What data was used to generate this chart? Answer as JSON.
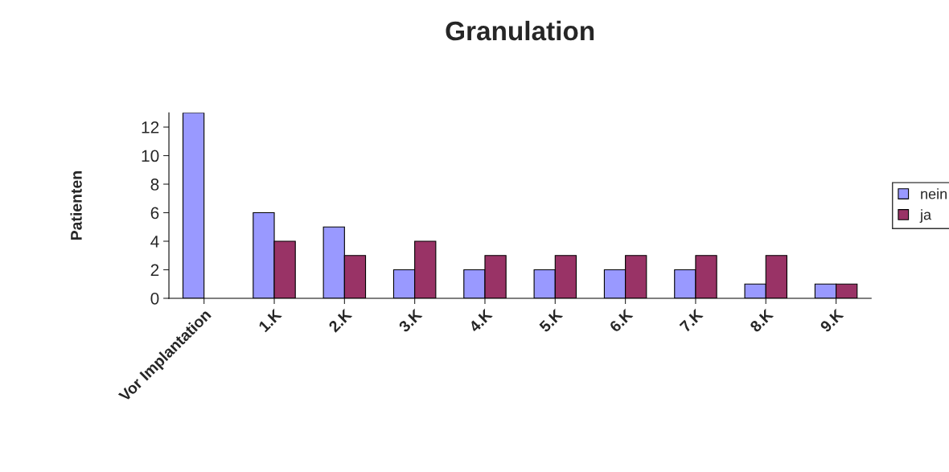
{
  "chart_data": {
    "type": "bar",
    "title": "Granulation",
    "ylabel": "Patienten",
    "categories": [
      "Vor Implantation",
      "1.K",
      "2.K",
      "3.K",
      "4.K",
      "5.K",
      "6.K",
      "7.K",
      "8.K",
      "9.K"
    ],
    "series": [
      {
        "name": "nein",
        "color": "#9999ff",
        "values": [
          13,
          6,
          5,
          2,
          2,
          2,
          2,
          2,
          1,
          1
        ]
      },
      {
        "name": "ja",
        "color": "#993366",
        "values": [
          null,
          4,
          3,
          4,
          3,
          3,
          3,
          3,
          3,
          1
        ]
      }
    ],
    "ylim": [
      0,
      13
    ],
    "yticks": [
      0,
      2,
      4,
      6,
      8,
      10,
      12
    ],
    "grid": false,
    "legend": "right"
  }
}
